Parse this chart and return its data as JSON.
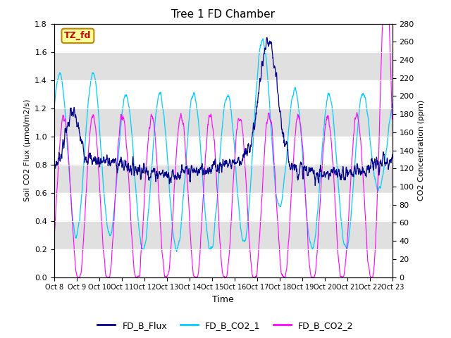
{
  "title": "Tree 1 FD Chamber",
  "xlabel": "Time",
  "ylabel_left": "Soil CO2 Flux (μmol/m2/s)",
  "ylabel_right": "CO2 Concentration (ppm)",
  "ylim_left": [
    0.0,
    1.8
  ],
  "ylim_right": [
    0,
    280
  ],
  "yticks_left": [
    0.0,
    0.2,
    0.4,
    0.6,
    0.8,
    1.0,
    1.2,
    1.4,
    1.6,
    1.8
  ],
  "yticks_right": [
    0,
    20,
    40,
    60,
    80,
    100,
    120,
    140,
    160,
    180,
    200,
    220,
    240,
    260,
    280
  ],
  "xtick_labels": [
    "Oct 8",
    "Oct 9",
    "Oct 10",
    "Oct 11",
    "Oct 12",
    "Oct 13",
    "Oct 14",
    "Oct 15",
    "Oct 16",
    "Oct 17",
    "Oct 18",
    "Oct 19",
    "Oct 20",
    "Oct 21",
    "Oct 22",
    "Oct 23"
  ],
  "colors": {
    "flux": "#00008B",
    "co2_1": "#00CCFF",
    "co2_2": "#FF00FF"
  },
  "legend_labels": [
    "FD_B_Flux",
    "FD_B_CO2_1",
    "FD_B_CO2_2"
  ],
  "annotation_text": "TZ_fd",
  "annotation_bg": "#FFFF99",
  "annotation_border": "#B8860B",
  "shading_bands": [
    {
      "ymin": 1.6,
      "ymax": 1.8,
      "color": "#ffffff"
    },
    {
      "ymin": 1.4,
      "ymax": 1.6,
      "color": "#e0e0e0"
    },
    {
      "ymin": 1.2,
      "ymax": 1.4,
      "color": "#ffffff"
    },
    {
      "ymin": 1.0,
      "ymax": 1.2,
      "color": "#e0e0e0"
    },
    {
      "ymin": 0.8,
      "ymax": 1.0,
      "color": "#ffffff"
    },
    {
      "ymin": 0.6,
      "ymax": 0.8,
      "color": "#e0e0e0"
    },
    {
      "ymin": 0.4,
      "ymax": 0.6,
      "color": "#ffffff"
    },
    {
      "ymin": 0.2,
      "ymax": 0.4,
      "color": "#e0e0e0"
    },
    {
      "ymin": 0.0,
      "ymax": 0.2,
      "color": "#ffffff"
    }
  ],
  "background_color": "#f0f0f0"
}
